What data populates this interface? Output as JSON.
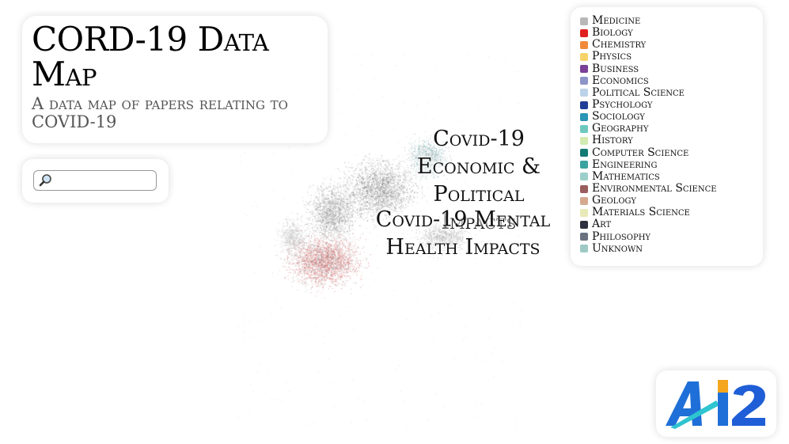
{
  "header": {
    "title": "CORD-19 Data Map",
    "subtitle": "A data map of papers relating to COVID-19"
  },
  "search": {
    "placeholder": "",
    "value": ""
  },
  "legend": {
    "items": [
      {
        "label": "Medicine",
        "color": "#b8b8b8"
      },
      {
        "label": "Biology",
        "color": "#e02020"
      },
      {
        "label": "Chemistry",
        "color": "#f08a3a"
      },
      {
        "label": "Physics",
        "color": "#f7d36a"
      },
      {
        "label": "Business",
        "color": "#7b3f97"
      },
      {
        "label": "Economics",
        "color": "#8d94c8"
      },
      {
        "label": "Political Science",
        "color": "#bcd2e8"
      },
      {
        "label": "Psychology",
        "color": "#1f3e96"
      },
      {
        "label": "Sociology",
        "color": "#2a95b5"
      },
      {
        "label": "Geography",
        "color": "#6ec8c0"
      },
      {
        "label": "History",
        "color": "#d3eab0"
      },
      {
        "label": "Computer Science",
        "color": "#137a74"
      },
      {
        "label": "Engineering",
        "color": "#3aa3a0"
      },
      {
        "label": "Mathematics",
        "color": "#9ccfcb"
      },
      {
        "label": "Environmental Science",
        "color": "#9a5d5d"
      },
      {
        "label": "Geology",
        "color": "#d4a98f"
      },
      {
        "label": "Materials Science",
        "color": "#e9e9b7"
      },
      {
        "label": "Art",
        "color": "#2e3040"
      },
      {
        "label": "Philosophy",
        "color": "#6a7280"
      },
      {
        "label": "Unknown",
        "color": "#9fc9c5"
      }
    ]
  },
  "map_labels": {
    "econ": [
      "Covid-19",
      "Economic &",
      "Political",
      "Impacts"
    ],
    "mental": [
      "Covid-19 Mental",
      "Health Impacts"
    ]
  },
  "logo": {
    "text": "AI2",
    "colors": {
      "a": "#1f6fd8",
      "slash": "#f4a71d",
      "slash2": "#2ec4d0",
      "two": "#1f5ed6"
    }
  }
}
